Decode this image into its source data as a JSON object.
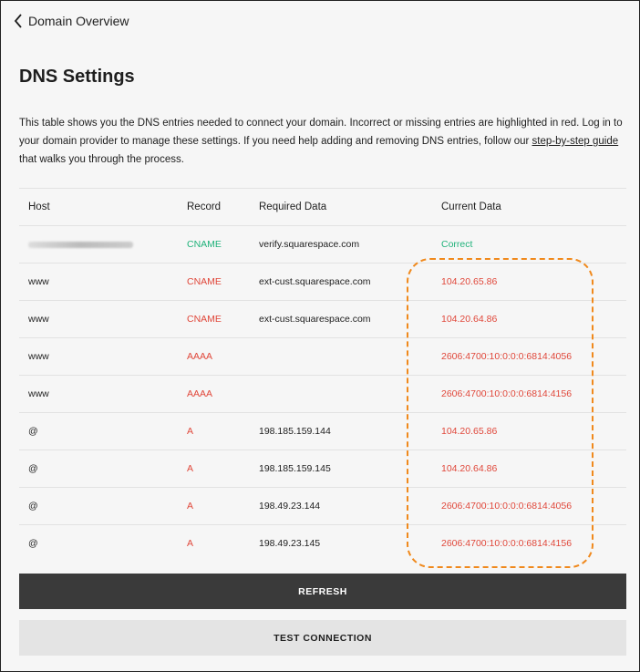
{
  "nav": {
    "back_label": "Domain Overview"
  },
  "page": {
    "title": "DNS Settings",
    "description_before": "This table shows you the DNS entries needed to connect your domain. Incorrect or missing entries are highlighted in red. Log in to your domain provider to manage these settings. If you need help adding and removing DNS entries, follow our ",
    "description_link": "step-by-step guide",
    "description_after": " that walks you through the process."
  },
  "table": {
    "headers": [
      "Host",
      "Record",
      "Required Data",
      "Current Data"
    ],
    "rows": [
      {
        "host": "",
        "record": "CNAME",
        "required": "verify.squarespace.com",
        "current": "Correct",
        "status": "ok"
      },
      {
        "host": "www",
        "record": "CNAME",
        "required": "ext-cust.squarespace.com",
        "current": "104.20.65.86",
        "status": "error"
      },
      {
        "host": "www",
        "record": "CNAME",
        "required": "ext-cust.squarespace.com",
        "current": "104.20.64.86",
        "status": "error"
      },
      {
        "host": "www",
        "record": "AAAA",
        "required": "",
        "current": "2606:4700:10:0:0:0:6814:4056",
        "status": "error"
      },
      {
        "host": "www",
        "record": "AAAA",
        "required": "",
        "current": "2606:4700:10:0:0:0:6814:4156",
        "status": "error"
      },
      {
        "host": "@",
        "record": "A",
        "required": "198.185.159.144",
        "current": "104.20.65.86",
        "status": "error"
      },
      {
        "host": "@",
        "record": "A",
        "required": "198.185.159.145",
        "current": "104.20.64.86",
        "status": "error"
      },
      {
        "host": "@",
        "record": "A",
        "required": "198.49.23.144",
        "current": "2606:4700:10:0:0:0:6814:4056",
        "status": "error"
      },
      {
        "host": "@",
        "record": "A",
        "required": "198.49.23.145",
        "current": "2606:4700:10:0:0:0:6814:4156",
        "status": "error"
      }
    ]
  },
  "buttons": {
    "refresh": "REFRESH",
    "test": "TEST CONNECTION"
  },
  "colors": {
    "error": "#e0473a",
    "ok": "#20b27a",
    "highlight": "#f0891c",
    "primary_button": "#3a3a3a"
  }
}
